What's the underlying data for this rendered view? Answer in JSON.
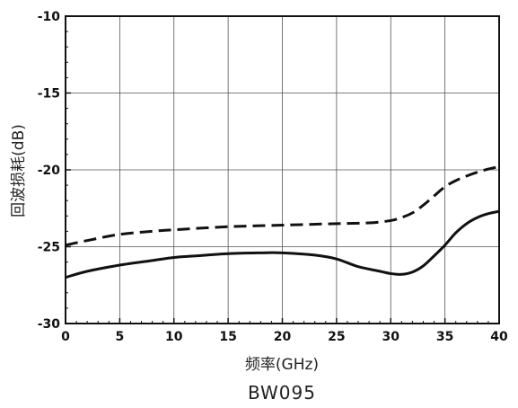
{
  "chart_data": {
    "type": "line",
    "title": "BW095",
    "xlabel": "频率(GHz)",
    "ylabel": "回波损耗(dB)",
    "xlim": [
      0,
      40
    ],
    "ylim": [
      -30,
      -10
    ],
    "xticks": [
      0,
      5,
      10,
      15,
      20,
      25,
      30,
      35,
      40
    ],
    "yticks": [
      -30,
      -25,
      -20,
      -15,
      -10
    ],
    "grid": true,
    "series": [
      {
        "style": "dashed",
        "color": "#111111",
        "x": [
          0,
          2,
          5,
          8,
          10,
          15,
          20,
          25,
          28,
          30,
          31,
          32,
          33,
          34,
          35,
          36,
          37,
          38,
          39,
          40
        ],
        "y": [
          -24.9,
          -24.6,
          -24.2,
          -24.0,
          -23.9,
          -23.7,
          -23.6,
          -23.5,
          -23.45,
          -23.3,
          -23.1,
          -22.8,
          -22.3,
          -21.7,
          -21.1,
          -20.7,
          -20.4,
          -20.15,
          -19.95,
          -19.8
        ]
      },
      {
        "style": "solid",
        "color": "#111111",
        "x": [
          0,
          2,
          5,
          8,
          10,
          12,
          15,
          18,
          20,
          23,
          25,
          27,
          29,
          30,
          31,
          32,
          33,
          34,
          35,
          36,
          37,
          38,
          39,
          40
        ],
        "y": [
          -27.0,
          -26.6,
          -26.2,
          -25.9,
          -25.7,
          -25.6,
          -25.45,
          -25.4,
          -25.4,
          -25.55,
          -25.8,
          -26.3,
          -26.6,
          -26.75,
          -26.8,
          -26.65,
          -26.25,
          -25.6,
          -24.9,
          -24.1,
          -23.5,
          -23.1,
          -22.85,
          -22.7
        ]
      }
    ]
  }
}
